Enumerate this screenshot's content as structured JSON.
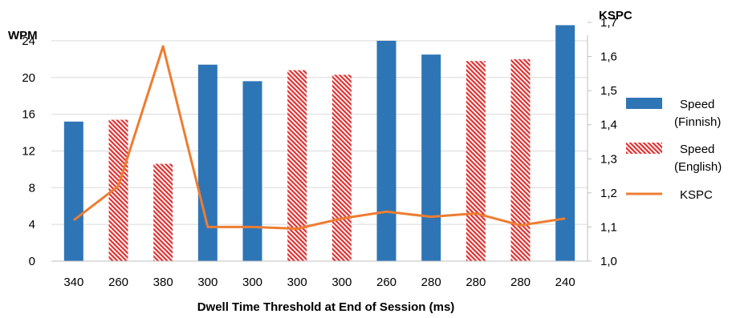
{
  "chart_data": {
    "type": "bar",
    "categories": [
      "340",
      "260",
      "380",
      "300",
      "300",
      "300",
      "300",
      "260",
      "280",
      "280",
      "280",
      "240"
    ],
    "series": [
      {
        "name": "Speed (Finnish)",
        "type": "bar",
        "axis": "left",
        "color": "#2e75b6",
        "values": [
          15.2,
          null,
          null,
          21.4,
          19.6,
          null,
          null,
          24.0,
          22.5,
          null,
          null,
          25.7
        ]
      },
      {
        "name": "Speed (English)",
        "type": "bar",
        "pattern": "diagonal-hatch",
        "axis": "left",
        "color": "#e03030",
        "values": [
          null,
          15.4,
          10.6,
          null,
          null,
          20.8,
          20.3,
          null,
          null,
          21.8,
          22.0,
          null
        ]
      },
      {
        "name": "KSPC",
        "type": "line",
        "axis": "right",
        "color": "#ed7d31",
        "values": [
          1.12,
          1.22,
          1.63,
          1.1,
          1.1,
          1.095,
          1.125,
          1.145,
          1.13,
          1.14,
          1.105,
          1.125
        ]
      }
    ],
    "y_left": {
      "label": "WPM",
      "range": [
        0,
        26
      ],
      "ticks": [
        0,
        4,
        8,
        12,
        16,
        20,
        24
      ]
    },
    "y_right": {
      "label": "KSPC",
      "range": [
        1.0,
        1.7
      ],
      "ticks": [
        "1,0",
        "1,1",
        "1,2",
        "1,3",
        "1,4",
        "1,5",
        "1,6",
        "1,7"
      ]
    },
    "xlabel": "Dwell Time Threshold at End of Session (ms)",
    "grid": "horizontal",
    "legend": {
      "position": "right",
      "items": [
        {
          "lines": [
            "Speed",
            "(Finnish)"
          ]
        },
        {
          "lines": [
            "Speed",
            "(English)"
          ]
        },
        {
          "lines": [
            "KSPC"
          ]
        }
      ]
    }
  }
}
